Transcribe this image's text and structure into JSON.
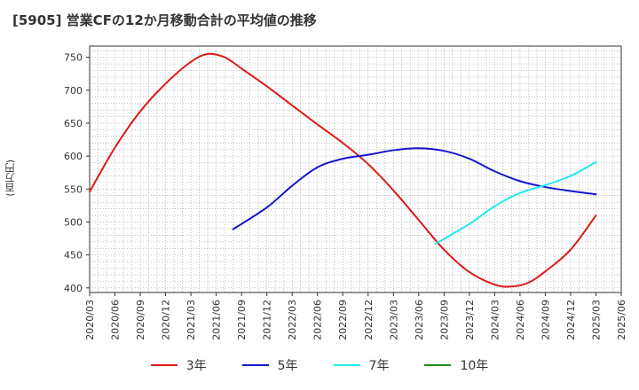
{
  "title": "[5905]  営業CFの12か月移動合計の平均値の推移",
  "chart_data": {
    "type": "line",
    "ylabel": "(百万円)",
    "xlabel": "",
    "ylim": [
      393,
      767
    ],
    "yticks": [
      400,
      450,
      500,
      550,
      600,
      650,
      700,
      750
    ],
    "x_ticks": [
      "2020/03",
      "2020/06",
      "2020/09",
      "2020/12",
      "2021/03",
      "2021/06",
      "2021/09",
      "2021/12",
      "2022/03",
      "2022/06",
      "2022/09",
      "2022/12",
      "2023/03",
      "2023/06",
      "2023/09",
      "2023/12",
      "2024/03",
      "2024/06",
      "2024/09",
      "2024/12",
      "2025/03",
      "2025/06"
    ],
    "grid": true,
    "legend_position": "bottom",
    "series": [
      {
        "name": "3年",
        "color": "#dd1a1a",
        "points": [
          [
            "2020/03",
            546
          ],
          [
            "2020/06",
            613
          ],
          [
            "2020/09",
            668
          ],
          [
            "2020/12",
            710
          ],
          [
            "2021/03",
            743
          ],
          [
            "2021/05",
            755
          ],
          [
            "2021/07",
            750
          ],
          [
            "2021/09",
            733
          ],
          [
            "2021/12",
            706
          ],
          [
            "2022/03",
            677
          ],
          [
            "2022/06",
            648
          ],
          [
            "2022/09",
            620
          ],
          [
            "2022/12",
            588
          ],
          [
            "2023/03",
            548
          ],
          [
            "2023/06",
            503
          ],
          [
            "2023/09",
            458
          ],
          [
            "2023/12",
            424
          ],
          [
            "2024/03",
            405
          ],
          [
            "2024/05",
            402
          ],
          [
            "2024/07",
            408
          ],
          [
            "2024/09",
            425
          ],
          [
            "2024/12",
            458
          ],
          [
            "2025/03",
            510
          ]
        ]
      },
      {
        "name": "5年",
        "color": "#1616c8",
        "points": [
          [
            "2021/08",
            489
          ],
          [
            "2021/12",
            522
          ],
          [
            "2022/03",
            555
          ],
          [
            "2022/06",
            583
          ],
          [
            "2022/09",
            596
          ],
          [
            "2022/12",
            602
          ],
          [
            "2023/03",
            609
          ],
          [
            "2023/06",
            612
          ],
          [
            "2023/09",
            608
          ],
          [
            "2023/12",
            596
          ],
          [
            "2024/03",
            577
          ],
          [
            "2024/06",
            562
          ],
          [
            "2024/09",
            553
          ],
          [
            "2024/12",
            547
          ],
          [
            "2025/03",
            542
          ]
        ]
      },
      {
        "name": "7年",
        "color": "#22e8f0",
        "points": [
          [
            "2023/08",
            467
          ],
          [
            "2023/12",
            497
          ],
          [
            "2024/03",
            524
          ],
          [
            "2024/06",
            544
          ],
          [
            "2024/09",
            556
          ],
          [
            "2024/12",
            570
          ],
          [
            "2025/03",
            591
          ]
        ]
      },
      {
        "name": "10年",
        "color": "#1a8a1a",
        "points": []
      }
    ]
  }
}
